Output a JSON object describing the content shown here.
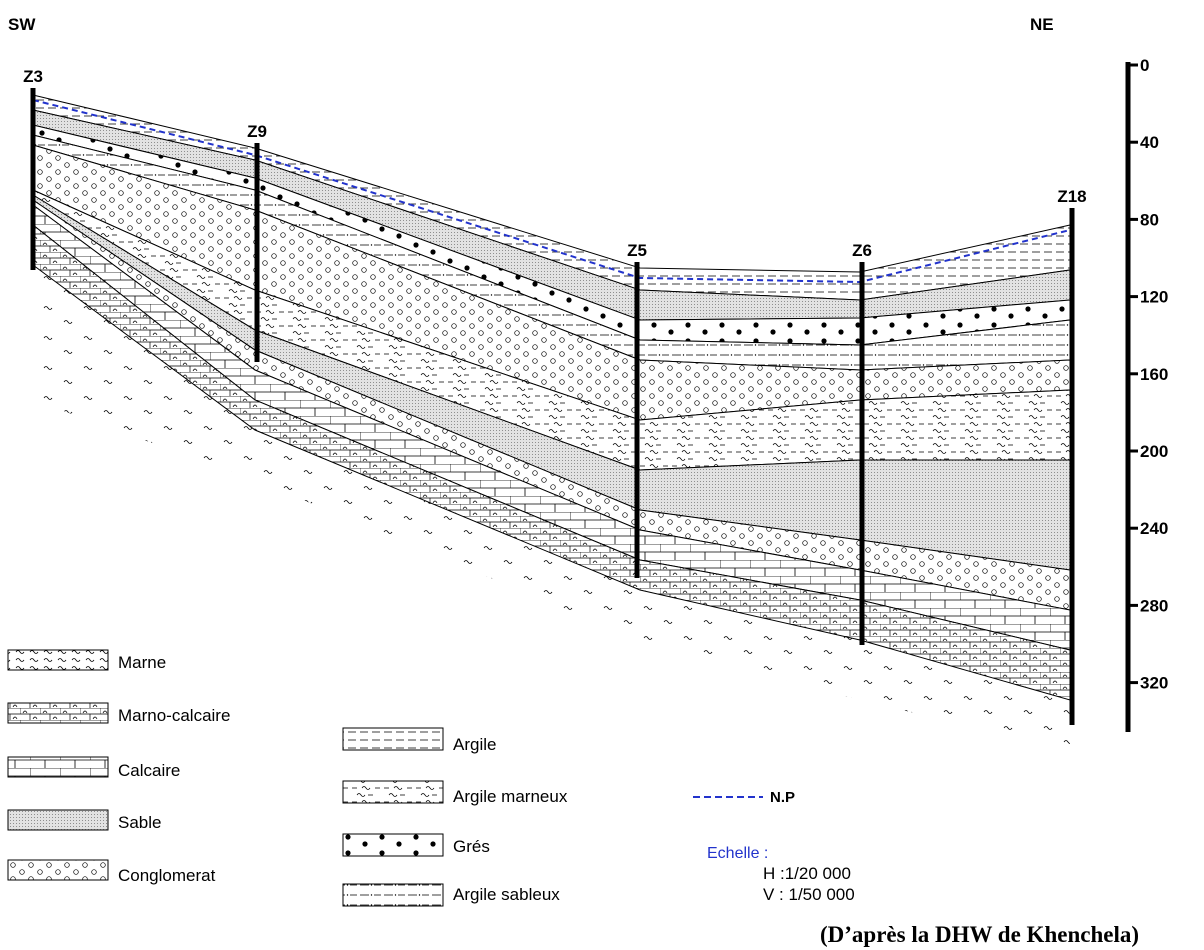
{
  "header": {
    "left": "SW",
    "right": "NE"
  },
  "wells": [
    {
      "label": "Z3"
    },
    {
      "label": "Z9"
    },
    {
      "label": "Z5"
    },
    {
      "label": "Z6"
    },
    {
      "label": "Z18"
    }
  ],
  "scale": {
    "ticks": [
      0,
      40,
      80,
      120,
      160,
      200,
      240,
      280,
      320
    ]
  },
  "legend": {
    "left": [
      "Marne",
      "Marno-calcaire",
      "Calcaire",
      "Sable",
      "Conglomerat"
    ],
    "middle": [
      "Argile",
      "Argile marneux",
      "Grés",
      "Argile sableux"
    ]
  },
  "water_table": {
    "label": "N.P"
  },
  "scale_note": {
    "title": "Echelle :",
    "h": "H :1/20 000",
    "v": "V : 1/50 000"
  },
  "source": "(D’après la DHW de Khenchela)"
}
